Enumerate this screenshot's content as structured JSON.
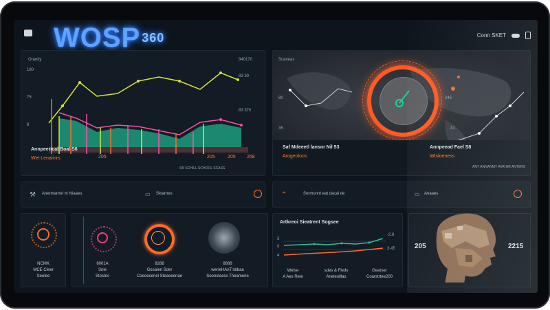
{
  "header": {
    "brand": "WOSP",
    "brand_sup": "360",
    "right_label": "Conn SKET"
  },
  "top_left": {
    "title": "Oranity",
    "y_ticks": [
      "180",
      "75",
      "8"
    ],
    "right_values": [
      "840170",
      "83 30",
      "83 370"
    ],
    "caption": "Annpeerical Boal S6",
    "sub_caption": "Wet Lenaiinrs",
    "stats": [
      "205",
      "205",
      "205",
      "258"
    ],
    "footer": "SN SCHILL SCHOOL SCASS"
  },
  "top_right": {
    "title": "Scaneas",
    "left_values": [
      "80",
      "35"
    ],
    "right_values": [
      "246",
      "31"
    ],
    "caption_left": "Saf Mdeeetl lansnr Nil 53",
    "sub_left": "Arogeoloos",
    "caption_right": "Annpeead Fael S8",
    "sub_right": "Wtsloeness",
    "footer": "ANY ANNANMY AVATAR ANTERS"
  },
  "mid_left": {
    "text": "Anermanrel m hiiaaes",
    "text2": "Sloarnes"
  },
  "mid_right": {
    "text": "Sormunnt eat dacai de",
    "text2": "Anaaes"
  },
  "bottom": {
    "c1": {
      "top": "NCMK",
      "mid": "MCE Cleer",
      "bot": "Seelee"
    },
    "c2": {
      "top": "6001A",
      "mid": "Snie",
      "bot": "Stostes"
    },
    "c3": {
      "top": "8288",
      "mid": "Gosalen Sder",
      "bot": "Coeoosenel Steaeeenae"
    },
    "c4": {
      "top": "8888",
      "mid": "wer/eHAnT'sbbaa",
      "bot": "Soonstaess Theamene"
    },
    "chart_title": "Artkreoi Sieatrent Sogsee",
    "chart_vals_left": [
      "3",
      "0",
      "4"
    ],
    "chart_vals_right": [
      "-2.8",
      "3.45"
    ],
    "chart_labels": [
      "Welse",
      "sdes & Fleds",
      "Gearser"
    ],
    "chart_sub": [
      "A Aes Rele",
      "Aneleolllas",
      "Coarstrtee200"
    ],
    "face_left": "205",
    "face_right": "2215"
  },
  "colors": {
    "accent": "#ff6b2b",
    "green": "#29c39a",
    "pink": "#ff4fa8",
    "yellow": "#d7e632",
    "brand": "#4d9bff"
  }
}
